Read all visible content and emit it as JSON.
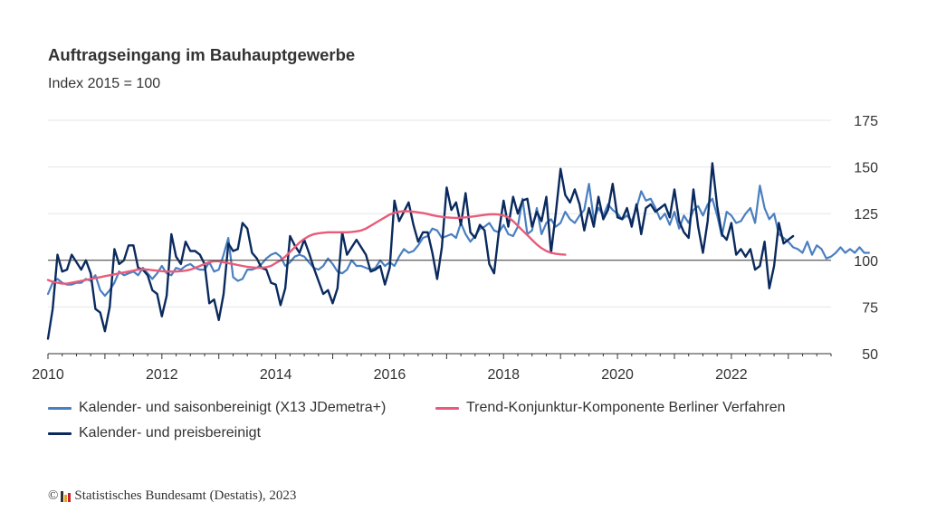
{
  "chart_data": {
    "type": "line",
    "title": "Auftragseingang im Bauhauptgewerbe",
    "subtitle": "Index 2015 = 100",
    "ylim": [
      50,
      175
    ],
    "yticks": [
      50,
      75,
      100,
      125,
      150,
      175
    ],
    "xlim": [
      2010.0,
      2023.75
    ],
    "xticks": [
      "2010",
      "2012",
      "2014",
      "2016",
      "2018",
      "2020",
      "2022"
    ],
    "reference_line": 100,
    "grid": true,
    "legend_position": "bottom",
    "series": [
      {
        "name": "Kalender- und saisonbereinigt (X13 JDemetra+)",
        "color": "#4a7fc1",
        "start": 2010.0,
        "step": 0.0833333,
        "values": [
          82,
          88,
          90,
          88,
          87,
          87,
          88,
          88,
          90,
          89,
          92,
          84,
          81,
          84,
          88,
          94,
          92,
          93,
          94,
          92,
          96,
          93,
          90,
          93,
          97,
          93,
          92,
          96,
          95,
          97,
          98,
          96,
          95,
          95,
          99,
          94,
          95,
          103,
          112,
          91,
          89,
          90,
          95,
          95,
          96,
          98,
          101,
          103,
          104,
          102,
          97,
          99,
          102,
          103,
          102,
          99,
          96,
          95,
          97,
          101,
          98,
          94,
          93,
          95,
          100,
          97,
          97,
          96,
          95,
          96,
          100,
          97,
          99,
          97,
          102,
          106,
          104,
          105,
          108,
          112,
          113,
          117,
          116,
          112,
          113,
          114,
          112,
          120,
          114,
          110,
          113,
          117,
          118,
          120,
          116,
          115,
          119,
          114,
          113,
          118,
          133,
          114,
          116,
          128,
          114,
          120,
          122,
          118,
          120,
          126,
          122,
          120,
          124,
          127,
          141,
          122,
          128,
          124,
          130,
          127,
          125,
          122,
          124,
          121,
          128,
          137,
          132,
          133,
          128,
          122,
          125,
          119,
          126,
          117,
          124,
          120,
          127,
          129,
          124,
          130,
          133,
          124,
          113,
          126,
          124,
          120,
          121,
          125,
          128,
          120,
          140,
          128,
          122,
          125,
          114,
          112,
          110,
          107,
          106,
          104,
          110,
          103,
          108,
          106,
          101,
          102,
          104,
          107,
          104,
          106,
          104,
          107,
          104,
          104
        ]
      },
      {
        "name": "Kalender- und preisbereinigt",
        "color": "#0a2a5e",
        "start": 2010.0,
        "step": 0.0833333,
        "values": [
          58,
          74,
          103,
          94,
          95,
          103,
          99,
          95,
          100,
          93,
          74,
          72,
          62,
          75,
          106,
          98,
          100,
          108,
          108,
          96,
          95,
          92,
          84,
          82,
          70,
          81,
          114,
          102,
          98,
          110,
          105,
          105,
          103,
          98,
          77,
          79,
          68,
          82,
          109,
          105,
          106,
          120,
          117,
          104,
          101,
          96,
          95,
          88,
          87,
          76,
          85,
          113,
          108,
          104,
          111,
          104,
          96,
          89,
          82,
          84,
          77,
          85,
          115,
          103,
          107,
          111,
          107,
          103,
          94,
          95,
          97,
          87,
          96,
          132,
          121,
          126,
          131,
          119,
          110,
          115,
          115,
          104,
          90,
          107,
          139,
          127,
          131,
          119,
          136,
          115,
          112,
          119,
          116,
          98,
          93,
          115,
          132,
          118,
          134,
          125,
          132,
          133,
          118,
          126,
          121,
          134,
          104,
          125,
          149,
          135,
          131,
          138,
          130,
          116,
          128,
          118,
          134,
          122,
          127,
          141,
          123,
          122,
          128,
          118,
          130,
          114,
          128,
          130,
          126,
          128,
          130,
          123,
          138,
          121,
          115,
          112,
          138,
          118,
          104,
          121,
          152,
          129,
          114,
          111,
          120,
          103,
          106,
          102,
          106,
          95,
          97,
          110,
          85,
          97,
          120,
          109,
          111,
          113
        ]
      },
      {
        "name": "Trend-Konjunktur-Komponente Berliner Verfahren",
        "color": "#e95b78",
        "start": 2010.0,
        "step": 0.0833333,
        "values": [
          89.5,
          88.5,
          88,
          87.5,
          87.5,
          88,
          88.5,
          89,
          89.5,
          90,
          90.5,
          91,
          91.5,
          92,
          92.5,
          93,
          93.5,
          94,
          94.5,
          95,
          95.2,
          95,
          94.7,
          94.5,
          94.2,
          94,
          94,
          94,
          94.2,
          94.5,
          95,
          96,
          97,
          98,
          99,
          99.5,
          99.5,
          99,
          98.5,
          98,
          97.5,
          97,
          96.5,
          96.2,
          96,
          96,
          96.3,
          97,
          98.5,
          100,
          102,
          104.5,
          107,
          109.5,
          111.5,
          113,
          114,
          114.5,
          114.8,
          115,
          115,
          115,
          115,
          115,
          115.2,
          115.5,
          116,
          117,
          118.5,
          120,
          121.5,
          123,
          124.5,
          125.5,
          126,
          126.3,
          126.2,
          126,
          125.7,
          125.3,
          124.8,
          124.2,
          123.7,
          123.3,
          123,
          122.8,
          122.7,
          122.8,
          123,
          123.3,
          123.6,
          124,
          124.3,
          124.6,
          124.7,
          124.5,
          124,
          123,
          121,
          118.5,
          116,
          113.5,
          111,
          108.5,
          106.5,
          105,
          104,
          103.5,
          103.2,
          103
        ]
      }
    ]
  },
  "footer": {
    "copyright_symbol": "©",
    "text": "Statistisches Bundesamt (Destatis), 2023"
  }
}
